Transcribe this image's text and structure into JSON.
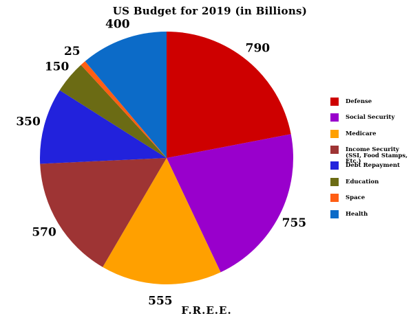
{
  "footer": {
    "text": "F.R.E.E."
  },
  "chart_data": {
    "type": "pie",
    "title": "US Budget for 2019 (in Billions)",
    "start_angle_deg": 0,
    "direction": "clockwise",
    "total": 3595,
    "legend_position": "right",
    "slices": [
      {
        "label": "Defense",
        "value": 790,
        "color": "#CE0000"
      },
      {
        "label": "Social Security",
        "value": 755,
        "color": "#9900CC"
      },
      {
        "label": "Medicare",
        "value": 555,
        "color": "#FFA000"
      },
      {
        "label": "Income Security (SSI, Food Stamps, Etc.)",
        "value": 570,
        "color": "#9E3434"
      },
      {
        "label": "Debt Repayment",
        "value": 350,
        "color": "#2222DC"
      },
      {
        "label": "Education",
        "value": 150,
        "color": "#6B6B14"
      },
      {
        "label": "Space",
        "value": 25,
        "color": "#FF5E14"
      },
      {
        "label": "Health",
        "value": 400,
        "color": "#0C6BC8"
      }
    ]
  }
}
